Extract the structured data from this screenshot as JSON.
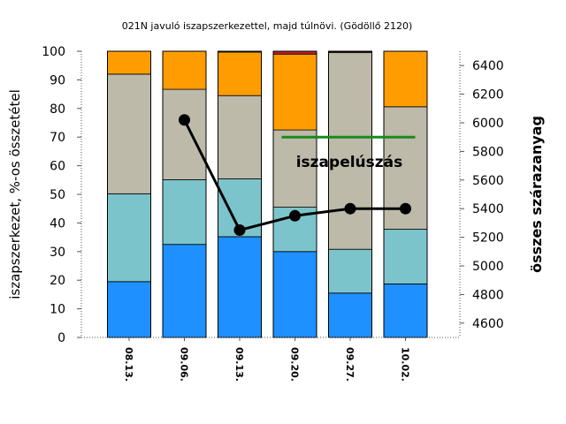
{
  "chart_data": {
    "type": "bar",
    "subtype": "stacked-bar-with-line",
    "title": "021N javuló iszapszerkezettel, majd túlnövi. (Gödöllő 2120)",
    "categories": [
      "08.13.",
      "09.06.",
      "09.13.",
      "09.20.",
      "09.27.",
      "10.02."
    ],
    "ylabel": "iszapszerkezet, %-os összetétel",
    "y2label": "összes szárazanyag",
    "ylim": [
      0,
      100
    ],
    "y2lim": [
      4500,
      6500
    ],
    "yticks": [
      0,
      10,
      20,
      30,
      40,
      50,
      60,
      70,
      80,
      90,
      100
    ],
    "y2ticks": [
      4600,
      4800,
      5000,
      5200,
      5400,
      5600,
      5800,
      6000,
      6200,
      6400
    ],
    "series": [
      {
        "name": "blue",
        "color": "#1e90ff",
        "values": [
          19.5,
          32.5,
          35.2,
          30.0,
          15.5,
          18.7
        ]
      },
      {
        "name": "teal",
        "color": "#7cc4cc",
        "values": [
          30.7,
          22.6,
          20.2,
          15.5,
          15.3,
          19.1
        ]
      },
      {
        "name": "gray",
        "color": "#bdbaaa",
        "values": [
          41.8,
          31.6,
          29.1,
          27.0,
          68.7,
          42.8
        ]
      },
      {
        "name": "orange",
        "color": "#ff9d00",
        "values": [
          8.0,
          13.3,
          15.2,
          26.5,
          0.3,
          19.4
        ]
      },
      {
        "name": "dark",
        "color": "#666666",
        "values": [
          0.0,
          0.0,
          0.3,
          0.0,
          0.2,
          0.0
        ]
      },
      {
        "name": "red",
        "color": "#c0202a",
        "values": [
          0.0,
          0.0,
          0.0,
          1.0,
          0.0,
          0.0
        ]
      }
    ],
    "line_series": {
      "name": "összes szárazanyag",
      "color": "#000000",
      "points": [
        {
          "category": "09.06.",
          "value": 6020
        },
        {
          "category": "09.13.",
          "value": 5250
        },
        {
          "category": "09.20.",
          "value": 5350
        },
        {
          "category": "09.27.",
          "value": 5400
        },
        {
          "category": "10.02.",
          "value": 5400
        }
      ]
    },
    "annotations": [
      {
        "text": "iszapelúszás",
        "color": "#000000"
      }
    ],
    "reference_line": {
      "color": "#1a8a1a",
      "value_y": 70,
      "from_category": "09.20.",
      "to_category": "10.02."
    }
  }
}
